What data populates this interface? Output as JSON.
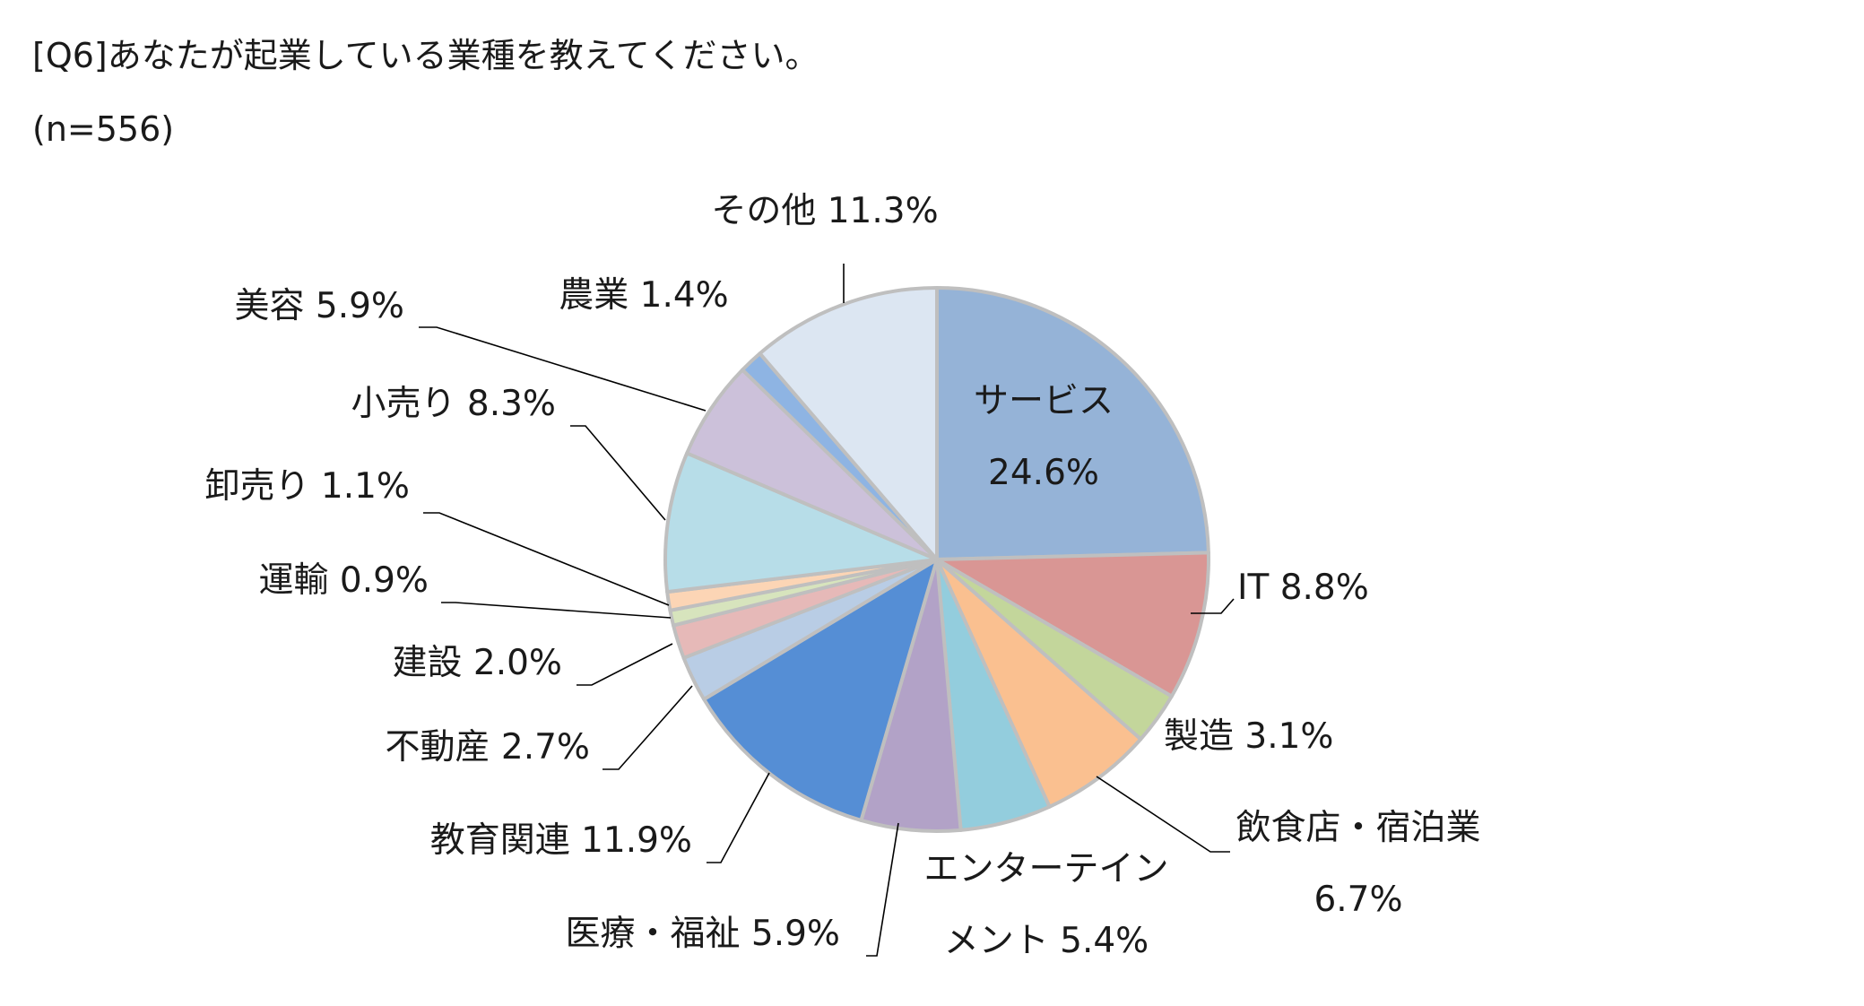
{
  "page": {
    "title": "[Q6]あなたが起業している業種を教えてください。",
    "subtitle": "(n=556)"
  },
  "chart_data": {
    "type": "pie",
    "title": "[Q6]あなたが起業している業種を教えてください。",
    "subtitle": "(n=556)",
    "slices": [
      {
        "label": "サービス",
        "display": "サービス\n24.6%",
        "value": 24.6,
        "color": "#95b3d7"
      },
      {
        "label": "IT",
        "display": "IT 8.8%",
        "value": 8.8,
        "color": "#d99694"
      },
      {
        "label": "製造",
        "display": "製造 3.1%",
        "value": 3.1,
        "color": "#c3d69b"
      },
      {
        "label": "飲食店・宿泊業",
        "display": "飲食店・宿泊業\n6.7%",
        "value": 6.7,
        "color": "#fac090"
      },
      {
        "label": "エンターテインメント",
        "display": "エンターテイン\nメント 5.4%",
        "value": 5.4,
        "color": "#93cddd"
      },
      {
        "label": "医療・福祉",
        "display": "医療・福祉 5.9%",
        "value": 5.9,
        "color": "#b2a2c7"
      },
      {
        "label": "教育関連",
        "display": "教育関連 11.9%",
        "value": 11.9,
        "color": "#558ed5"
      },
      {
        "label": "不動産",
        "display": "不動産 2.7%",
        "value": 2.7,
        "color": "#b9cde5"
      },
      {
        "label": "建設",
        "display": "建設 2.0%",
        "value": 2.0,
        "color": "#e6b9b8"
      },
      {
        "label": "運輸",
        "display": "運輸 0.9%",
        "value": 0.9,
        "color": "#d7e4bd"
      },
      {
        "label": "卸売り",
        "display": "卸売り 1.1%",
        "value": 1.1,
        "color": "#fcd5b5"
      },
      {
        "label": "小売り",
        "display": "小売り 8.3%",
        "value": 8.3,
        "color": "#b7dde8"
      },
      {
        "label": "美容",
        "display": "美容 5.9%",
        "value": 5.9,
        "color": "#ccc1da"
      },
      {
        "label": "農業",
        "display": "農業 1.4%",
        "value": 1.4,
        "color": "#8eb4e3"
      },
      {
        "label": "その他",
        "display": "その他 11.3%",
        "value": 11.3,
        "color": "#dce6f2"
      }
    ],
    "border_color": "#bfbfbf",
    "leader_color": "#000000"
  }
}
